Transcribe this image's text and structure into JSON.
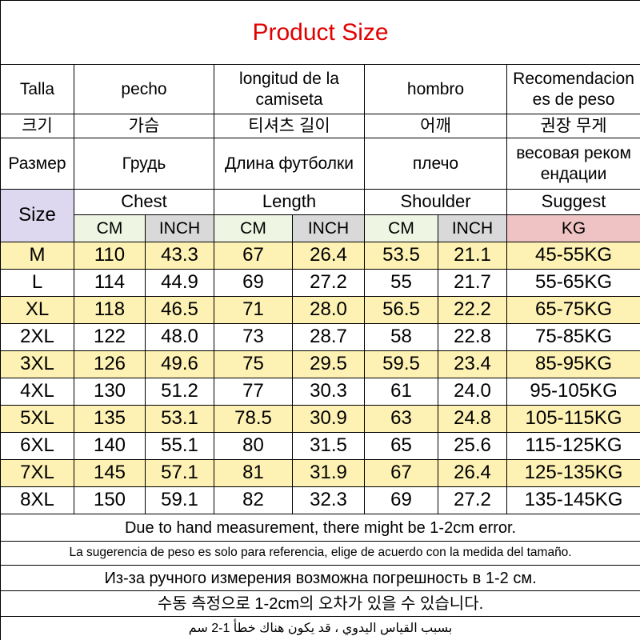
{
  "title": "Product Size",
  "header_rows": [
    [
      "Talla",
      "pecho",
      "longitud de la camiseta",
      "hombro",
      "Recomendaciones de peso"
    ],
    [
      "크기",
      "가슴",
      "티셔츠 길이",
      "어깨",
      "권장 무게"
    ],
    [
      "Размер",
      "Грудь",
      "Длина футболки",
      "плечо",
      "весовая рекомендации"
    ]
  ],
  "size_label": "Size",
  "groups": [
    "Chest",
    "Length",
    "Shoulder",
    "Suggest"
  ],
  "units": [
    "CM",
    "INCH",
    "CM",
    "INCH",
    "CM",
    "INCH",
    "KG"
  ],
  "rows": [
    [
      "M",
      "110",
      "43.3",
      "67",
      "26.4",
      "53.5",
      "21.1",
      "45-55KG"
    ],
    [
      "L",
      "114",
      "44.9",
      "69",
      "27.2",
      "55",
      "21.7",
      "55-65KG"
    ],
    [
      "XL",
      "118",
      "46.5",
      "71",
      "28.0",
      "56.5",
      "22.2",
      "65-75KG"
    ],
    [
      "2XL",
      "122",
      "48.0",
      "73",
      "28.7",
      "58",
      "22.8",
      "75-85KG"
    ],
    [
      "3XL",
      "126",
      "49.6",
      "75",
      "29.5",
      "59.5",
      "23.4",
      "85-95KG"
    ],
    [
      "4XL",
      "130",
      "51.2",
      "77",
      "30.3",
      "61",
      "24.0",
      "95-105KG"
    ],
    [
      "5XL",
      "135",
      "53.1",
      "78.5",
      "30.9",
      "63",
      "24.8",
      "105-115KG"
    ],
    [
      "6XL",
      "140",
      "55.1",
      "80",
      "31.5",
      "65",
      "25.6",
      "115-125KG"
    ],
    [
      "7XL",
      "145",
      "57.1",
      "81",
      "31.9",
      "67",
      "26.4",
      "125-135KG"
    ],
    [
      "8XL",
      "150",
      "59.1",
      "82",
      "32.3",
      "69",
      "27.2",
      "135-145KG"
    ]
  ],
  "notes": [
    "Due to hand measurement, there might be 1-2cm error.",
    "La sugerencia de peso es solo para referencia, elige de acuerdo con la medida del tamaño.",
    "Из-за ручного измерения возможна погрешность в 1-2 см.",
    "수동 측정으로 1-2cm의 오차가 있을 수 있습니다.",
    "بسبب القياس اليدوي ، قد يكون هناك خطأ 1-2 سم"
  ]
}
